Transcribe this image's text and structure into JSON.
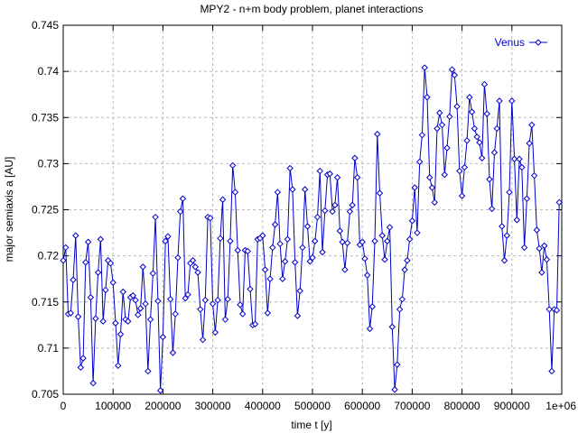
{
  "chart_data": {
    "type": "line",
    "title": "MPY2 - n+m body problem, planet interactions",
    "xlabel": "time t [y]",
    "ylabel": "major semiaxis a [AU]",
    "xlim": [
      0,
      1000000
    ],
    "ylim": [
      0.705,
      0.745
    ],
    "grid": true,
    "legend_position": "top-right",
    "x_ticks": [
      0,
      100000,
      200000,
      300000,
      400000,
      500000,
      600000,
      700000,
      800000,
      900000,
      1000000
    ],
    "x_tick_labels": [
      "0",
      "100000",
      "200000",
      "300000",
      "400000",
      "500000",
      "600000",
      "700000",
      "800000",
      "900000",
      "1e+06"
    ],
    "y_ticks": [
      0.705,
      0.71,
      0.715,
      0.72,
      0.725,
      0.73,
      0.735,
      0.74,
      0.745
    ],
    "y_tick_labels": [
      "0.705",
      "0.71",
      "0.715",
      "0.72",
      "0.725",
      "0.73",
      "0.735",
      "0.74",
      "0.745"
    ],
    "series": [
      {
        "name": "Venus",
        "color": "#0000cc",
        "marker": "diamond",
        "points": [
          [
            0,
            0.7195
          ],
          [
            5000,
            0.7209
          ],
          [
            10000,
            0.7137
          ],
          [
            15000,
            0.7138
          ],
          [
            20000,
            0.7174
          ],
          [
            25000,
            0.7222
          ],
          [
            30000,
            0.7134
          ],
          [
            35000,
            0.7079
          ],
          [
            40000,
            0.7089
          ],
          [
            45000,
            0.7193
          ],
          [
            50000,
            0.7215
          ],
          [
            55000,
            0.7155
          ],
          [
            60000,
            0.7062
          ],
          [
            65000,
            0.7132
          ],
          [
            70000,
            0.7182
          ],
          [
            75000,
            0.7218
          ],
          [
            80000,
            0.7129
          ],
          [
            85000,
            0.7163
          ],
          [
            90000,
            0.7195
          ],
          [
            95000,
            0.7192
          ],
          [
            100000,
            0.7171
          ],
          [
            105000,
            0.7127
          ],
          [
            110000,
            0.7081
          ],
          [
            115000,
            0.7115
          ],
          [
            120000,
            0.7161
          ],
          [
            125000,
            0.7131
          ],
          [
            130000,
            0.7129
          ],
          [
            135000,
            0.7155
          ],
          [
            140000,
            0.7157
          ],
          [
            145000,
            0.7152
          ],
          [
            150000,
            0.7136
          ],
          [
            155000,
            0.7143
          ],
          [
            160000,
            0.7188
          ],
          [
            165000,
            0.7148
          ],
          [
            170000,
            0.7075
          ],
          [
            175000,
            0.7131
          ],
          [
            180000,
            0.7181
          ],
          [
            185000,
            0.7242
          ],
          [
            190000,
            0.7151
          ],
          [
            195000,
            0.7054
          ],
          [
            200000,
            0.7112
          ],
          [
            205000,
            0.7216
          ],
          [
            210000,
            0.7221
          ],
          [
            215000,
            0.7153
          ],
          [
            220000,
            0.7095
          ],
          [
            225000,
            0.7137
          ],
          [
            230000,
            0.7198
          ],
          [
            235000,
            0.7248
          ],
          [
            240000,
            0.7262
          ],
          [
            245000,
            0.7154
          ],
          [
            250000,
            0.7158
          ],
          [
            255000,
            0.7192
          ],
          [
            260000,
            0.7195
          ],
          [
            265000,
            0.7188
          ],
          [
            270000,
            0.7182
          ],
          [
            275000,
            0.7142
          ],
          [
            280000,
            0.7109
          ],
          [
            285000,
            0.7152
          ],
          [
            290000,
            0.7242
          ],
          [
            295000,
            0.7241
          ],
          [
            300000,
            0.7148
          ],
          [
            305000,
            0.7117
          ],
          [
            310000,
            0.7152
          ],
          [
            315000,
            0.7219
          ],
          [
            320000,
            0.7261
          ],
          [
            325000,
            0.7131
          ],
          [
            330000,
            0.7153
          ],
          [
            335000,
            0.7216
          ],
          [
            340000,
            0.7298
          ],
          [
            345000,
            0.7269
          ],
          [
            350000,
            0.7206
          ],
          [
            355000,
            0.7147
          ],
          [
            360000,
            0.7137
          ],
          [
            365000,
            0.7206
          ],
          [
            370000,
            0.7205
          ],
          [
            375000,
            0.7164
          ],
          [
            380000,
            0.7125
          ],
          [
            385000,
            0.7126
          ],
          [
            390000,
            0.7218
          ],
          [
            395000,
            0.7219
          ],
          [
            400000,
            0.7222
          ],
          [
            405000,
            0.7185
          ],
          [
            410000,
            0.7138
          ],
          [
            415000,
            0.7175
          ],
          [
            420000,
            0.7209
          ],
          [
            425000,
            0.7234
          ],
          [
            430000,
            0.7269
          ],
          [
            435000,
            0.7213
          ],
          [
            440000,
            0.7175
          ],
          [
            445000,
            0.7194
          ],
          [
            450000,
            0.7218
          ],
          [
            455000,
            0.7295
          ],
          [
            460000,
            0.7272
          ],
          [
            465000,
            0.7193
          ],
          [
            470000,
            0.7135
          ],
          [
            475000,
            0.7162
          ],
          [
            480000,
            0.7209
          ],
          [
            485000,
            0.7272
          ],
          [
            490000,
            0.7232
          ],
          [
            495000,
            0.7194
          ],
          [
            500000,
            0.7198
          ],
          [
            505000,
            0.7216
          ],
          [
            510000,
            0.7242
          ],
          [
            515000,
            0.7292
          ],
          [
            520000,
            0.7204
          ],
          [
            525000,
            0.7249
          ],
          [
            530000,
            0.7288
          ],
          [
            535000,
            0.7289
          ],
          [
            540000,
            0.7248
          ],
          [
            545000,
            0.7255
          ],
          [
            550000,
            0.7285
          ],
          [
            555000,
            0.7227
          ],
          [
            560000,
            0.7215
          ],
          [
            565000,
            0.7185
          ],
          [
            570000,
            0.7214
          ],
          [
            575000,
            0.7248
          ],
          [
            580000,
            0.7255
          ],
          [
            585000,
            0.7306
          ],
          [
            590000,
            0.7285
          ],
          [
            595000,
            0.7212
          ],
          [
            600000,
            0.7215
          ],
          [
            605000,
            0.7197
          ],
          [
            610000,
            0.7179
          ],
          [
            615000,
            0.7121
          ],
          [
            620000,
            0.7145
          ],
          [
            625000,
            0.7216
          ],
          [
            630000,
            0.7332
          ],
          [
            635000,
            0.7268
          ],
          [
            640000,
            0.7222
          ],
          [
            645000,
            0.7196
          ],
          [
            650000,
            0.7216
          ],
          [
            655000,
            0.7231
          ],
          [
            660000,
            0.7123
          ],
          [
            665000,
            0.7055
          ],
          [
            670000,
            0.7082
          ],
          [
            675000,
            0.7142
          ],
          [
            680000,
            0.7153
          ],
          [
            685000,
            0.7185
          ],
          [
            690000,
            0.7195
          ],
          [
            695000,
            0.7218
          ],
          [
            700000,
            0.7238
          ],
          [
            705000,
            0.7274
          ],
          [
            710000,
            0.7225
          ],
          [
            715000,
            0.7302
          ],
          [
            720000,
            0.7331
          ],
          [
            725000,
            0.7404
          ],
          [
            730000,
            0.7372
          ],
          [
            735000,
            0.7285
          ],
          [
            740000,
            0.7274
          ],
          [
            745000,
            0.7258
          ],
          [
            750000,
            0.7338
          ],
          [
            755000,
            0.7355
          ],
          [
            760000,
            0.7342
          ],
          [
            765000,
            0.7288
          ],
          [
            770000,
            0.7317
          ],
          [
            775000,
            0.7351
          ],
          [
            780000,
            0.7402
          ],
          [
            785000,
            0.7396
          ],
          [
            790000,
            0.7362
          ],
          [
            795000,
            0.7292
          ],
          [
            800000,
            0.7265
          ],
          [
            805000,
            0.7296
          ],
          [
            810000,
            0.7325
          ],
          [
            815000,
            0.7372
          ],
          [
            820000,
            0.7356
          ],
          [
            825000,
            0.7338
          ],
          [
            830000,
            0.7329
          ],
          [
            835000,
            0.7323
          ],
          [
            840000,
            0.7306
          ],
          [
            845000,
            0.7386
          ],
          [
            850000,
            0.7354
          ],
          [
            855000,
            0.7283
          ],
          [
            860000,
            0.7251
          ],
          [
            865000,
            0.7312
          ],
          [
            870000,
            0.7338
          ],
          [
            875000,
            0.7368
          ],
          [
            880000,
            0.7232
          ],
          [
            885000,
            0.7195
          ],
          [
            890000,
            0.7222
          ],
          [
            895000,
            0.7269
          ],
          [
            900000,
            0.7368
          ],
          [
            905000,
            0.7305
          ],
          [
            910000,
            0.7239
          ],
          [
            915000,
            0.7305
          ],
          [
            920000,
            0.7296
          ],
          [
            925000,
            0.7209
          ],
          [
            930000,
            0.7262
          ],
          [
            935000,
            0.7322
          ],
          [
            940000,
            0.7342
          ],
          [
            945000,
            0.7287
          ],
          [
            950000,
            0.7228
          ],
          [
            955000,
            0.7208
          ],
          [
            960000,
            0.7182
          ],
          [
            965000,
            0.7211
          ],
          [
            970000,
            0.7196
          ],
          [
            975000,
            0.7142
          ],
          [
            980000,
            0.7075
          ],
          [
            985000,
            0.7142
          ],
          [
            990000,
            0.7141
          ],
          [
            995000,
            0.7258
          ]
        ]
      }
    ]
  }
}
